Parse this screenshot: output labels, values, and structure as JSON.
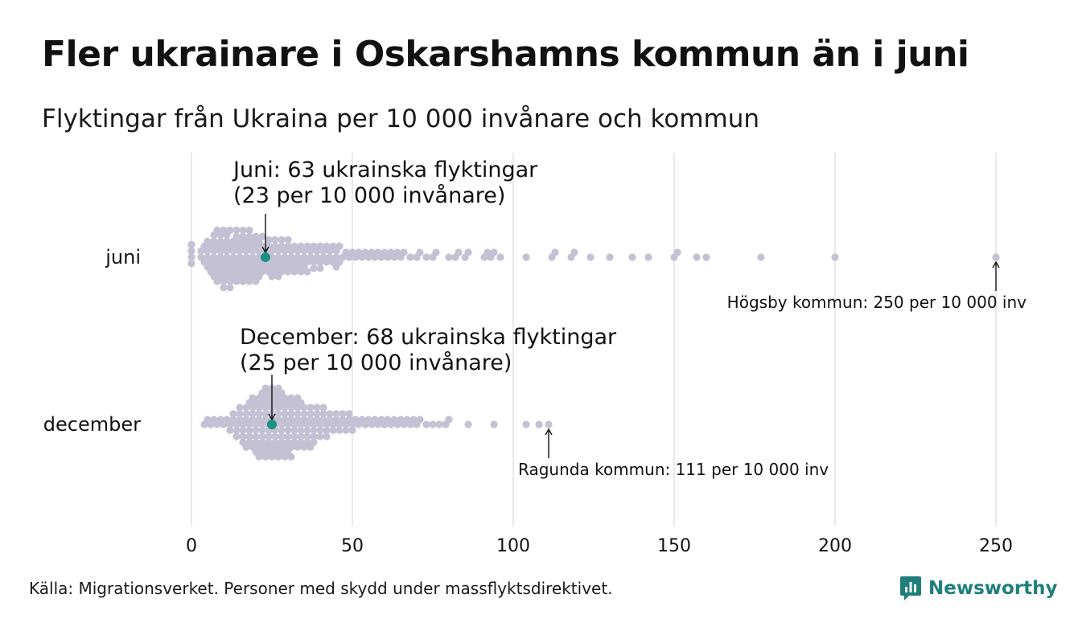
{
  "title": "Fler ukrainare i Oskarshamns kommun än i juni",
  "subtitle": "Flyktingar från Ukraina per 10 000 invånare och kommun",
  "source": "Källa: Migrationsverket. Personer med skydd under massflyktsdirektivet.",
  "logo": {
    "text": "Newsworthy",
    "color": "#1f7f7b"
  },
  "colors": {
    "dot": "#c3c1d3",
    "highlight": "#1a8f85",
    "grid": "#d3d3d3",
    "text": "#111111"
  },
  "chart_data": {
    "type": "scatter",
    "subtype": "beeswarm",
    "xlim": [
      0,
      250
    ],
    "xticks": [
      0,
      50,
      100,
      150,
      200,
      250
    ],
    "grid": true,
    "series": [
      {
        "name": "juni",
        "annotation_lines": [
          "Juni: 63 ukrainska flyktingar",
          "(23 per 10 000 invånare)"
        ],
        "highlight_value": 23,
        "callout": "Högsby kommun: 250 per 10 000 inv",
        "callout_value": 250,
        "values": [
          0,
          0,
          0,
          0,
          3,
          3,
          4,
          4,
          5,
          5,
          5,
          5,
          6,
          6,
          6,
          7,
          7,
          7,
          7,
          7,
          7,
          8,
          8,
          8,
          8,
          8,
          9,
          9,
          9,
          9,
          9,
          9,
          10,
          10,
          10,
          10,
          10,
          10,
          11,
          11,
          11,
          11,
          11,
          11,
          12,
          12,
          12,
          12,
          12,
          12,
          13,
          13,
          13,
          13,
          13,
          14,
          14,
          14,
          14,
          14,
          14,
          15,
          15,
          15,
          15,
          15,
          16,
          16,
          16,
          16,
          16,
          16,
          17,
          17,
          17,
          17,
          17,
          18,
          18,
          18,
          18,
          18,
          18,
          19,
          19,
          19,
          19,
          19,
          20,
          20,
          20,
          20,
          20,
          21,
          21,
          21,
          21,
          21,
          22,
          22,
          22,
          22,
          23,
          23,
          23,
          24,
          24,
          24,
          24,
          25,
          25,
          25,
          25,
          26,
          26,
          26,
          26,
          27,
          27,
          27,
          27,
          28,
          28,
          28,
          28,
          29,
          29,
          29,
          30,
          30,
          30,
          30,
          31,
          31,
          31,
          32,
          32,
          32,
          33,
          33,
          33,
          34,
          34,
          34,
          35,
          35,
          35,
          36,
          36,
          36,
          37,
          37,
          38,
          38,
          38,
          39,
          39,
          40,
          40,
          40,
          41,
          41,
          42,
          42,
          43,
          43,
          44,
          44,
          45,
          45,
          45,
          46,
          46,
          47,
          48,
          49,
          50,
          51,
          52,
          53,
          54,
          55,
          56,
          57,
          58,
          59,
          60,
          61,
          62,
          63,
          64,
          65,
          66,
          68,
          70,
          71,
          73,
          75,
          76,
          80,
          82,
          83,
          85,
          86,
          91,
          92,
          93,
          94,
          96,
          104,
          112,
          113,
          118,
          119,
          124,
          130,
          137,
          142,
          150,
          151,
          157,
          160,
          177,
          200,
          250
        ]
      },
      {
        "name": "december",
        "annotation_lines": [
          "December: 68 ukrainska flyktingar",
          "(25 per 10 000 invånare)"
        ],
        "highlight_value": 25,
        "callout": "Ragunda kommun: 111 per 10 000 inv",
        "callout_value": 111,
        "values": [
          4,
          5,
          6,
          7,
          8,
          9,
          10,
          11,
          12,
          12,
          13,
          13,
          14,
          14,
          14,
          15,
          15,
          15,
          16,
          16,
          16,
          16,
          17,
          17,
          17,
          17,
          18,
          18,
          18,
          18,
          18,
          19,
          19,
          19,
          19,
          19,
          20,
          20,
          20,
          20,
          20,
          20,
          21,
          21,
          21,
          21,
          21,
          21,
          22,
          22,
          22,
          22,
          22,
          22,
          22,
          23,
          23,
          23,
          23,
          23,
          23,
          23,
          24,
          24,
          24,
          24,
          24,
          24,
          24,
          25,
          25,
          25,
          25,
          25,
          25,
          25,
          26,
          26,
          26,
          26,
          26,
          26,
          26,
          27,
          27,
          27,
          27,
          27,
          27,
          27,
          28,
          28,
          28,
          28,
          28,
          28,
          28,
          29,
          29,
          29,
          29,
          29,
          29,
          30,
          30,
          30,
          30,
          30,
          30,
          31,
          31,
          31,
          31,
          31,
          31,
          32,
          32,
          32,
          32,
          32,
          33,
          33,
          33,
          33,
          33,
          34,
          34,
          34,
          34,
          34,
          35,
          35,
          35,
          35,
          36,
          36,
          36,
          36,
          37,
          37,
          37,
          37,
          38,
          38,
          38,
          38,
          39,
          39,
          39,
          40,
          40,
          40,
          41,
          41,
          41,
          42,
          42,
          42,
          43,
          43,
          44,
          44,
          45,
          45,
          46,
          46,
          47,
          47,
          48,
          48,
          49,
          49,
          50,
          50,
          51,
          52,
          53,
          54,
          55,
          56,
          57,
          58,
          59,
          60,
          61,
          62,
          63,
          64,
          65,
          66,
          67,
          68,
          69,
          70,
          71,
          73,
          75,
          77,
          79,
          80,
          86,
          94,
          104,
          108,
          111
        ]
      }
    ]
  }
}
